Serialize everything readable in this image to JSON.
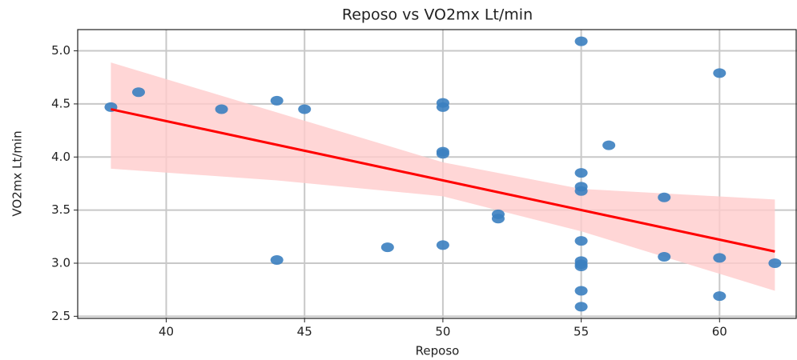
{
  "chart_data": {
    "type": "scatter",
    "title": "Reposo vs VO2mx Lt/min",
    "x_label": "Reposo",
    "y_label": "VO2mx Lt/min",
    "x": [
      38,
      39,
      42,
      44,
      44,
      45,
      48,
      50,
      50,
      50,
      50,
      50,
      52,
      52,
      55,
      55,
      55,
      55,
      55,
      55,
      55,
      55,
      55,
      55,
      56,
      58,
      58,
      60,
      60,
      60,
      62
    ],
    "y": [
      4.47,
      4.61,
      4.45,
      4.53,
      3.03,
      4.45,
      3.15,
      4.51,
      4.47,
      4.05,
      4.03,
      3.17,
      3.46,
      3.42,
      5.09,
      3.85,
      3.72,
      3.68,
      3.21,
      3.02,
      2.99,
      2.97,
      2.74,
      2.59,
      4.11,
      3.62,
      3.06,
      4.79,
      3.05,
      2.69,
      3.0
    ],
    "color": "#3b7fc0",
    "regression": {
      "x": [
        38,
        62
      ],
      "y": [
        4.45,
        3.11
      ],
      "color": "#ff0000"
    },
    "band": {
      "x": [
        38,
        44,
        50,
        55,
        62
      ],
      "lower": [
        3.89,
        3.78,
        3.63,
        3.3,
        2.74
      ],
      "upper": [
        4.89,
        4.42,
        3.95,
        3.7,
        3.6
      ],
      "color": "#ffcccc"
    },
    "xlim": [
      36.8,
      62.8
    ],
    "ylim": [
      2.48,
      5.2
    ],
    "xticks": [
      40,
      45,
      50,
      55,
      60
    ],
    "yticks": [
      2.5,
      {
        "value": 3,
        "label": "3.0"
      },
      3.5,
      {
        "value": 4,
        "label": "4.0"
      },
      4.5,
      {
        "value": 5,
        "label": "5.0"
      }
    ],
    "grid": true
  }
}
